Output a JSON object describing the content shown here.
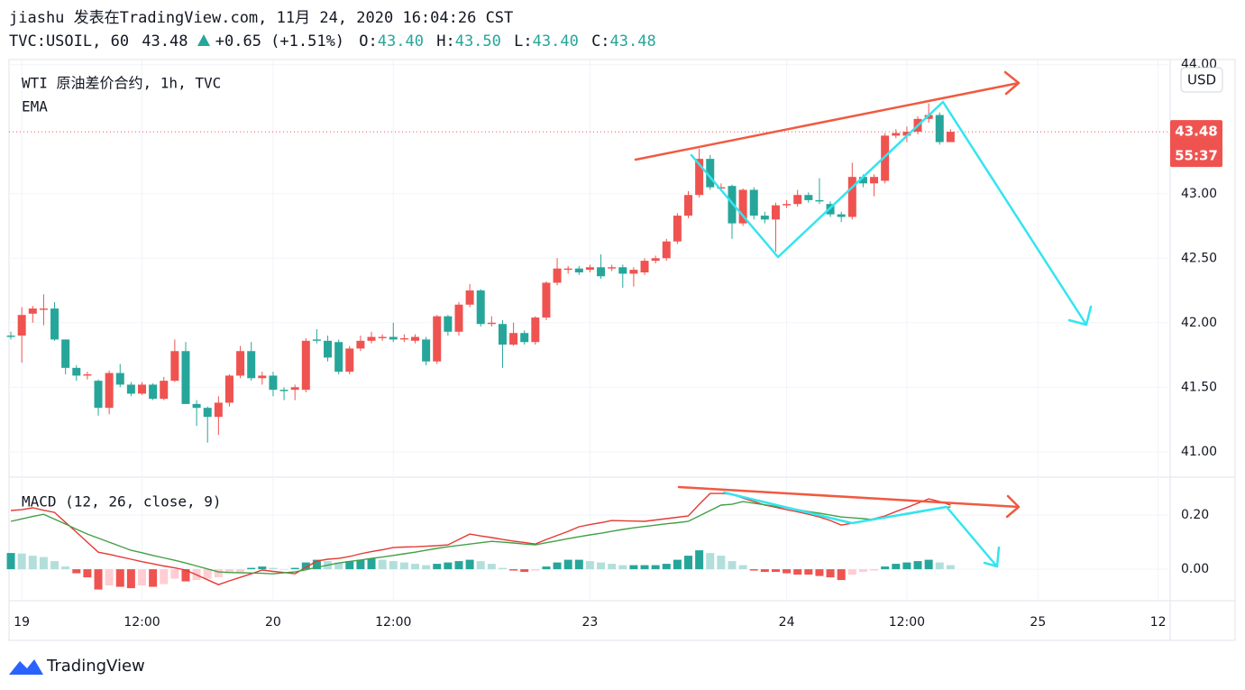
{
  "header": {
    "line1": "jiashu 发表在TradingView.com, 11月 24, 2020 16:04:26 CST",
    "symbol": "TVC:USOIL, 60",
    "price": "43.48",
    "change": "+0.65 (+1.51%)",
    "o_label": "O:",
    "o": "43.40",
    "h_label": "H:",
    "h": "43.50",
    "l_label": "L:",
    "l": "43.40",
    "c_label": "C:",
    "c": "43.48"
  },
  "footer": {
    "brand": "TradingView"
  },
  "chart_data": [
    {
      "type": "candlestick",
      "title": "WTI 原油差价合约, 1h, TVC",
      "indicator": "EMA",
      "open": [
        41.9,
        41.9,
        42.07,
        42.1,
        42.11,
        41.87,
        41.65,
        41.59,
        41.55,
        41.34,
        41.61,
        41.52,
        41.45,
        41.52,
        41.41,
        41.55,
        41.78,
        41.37,
        41.34,
        41.27,
        41.38,
        41.59,
        41.78,
        41.57,
        41.59,
        41.48,
        41.48,
        41.48,
        41.87,
        41.86,
        41.85,
        41.62,
        41.8,
        41.86,
        41.88,
        41.89,
        41.87,
        41.86,
        41.87,
        41.7,
        42.05,
        41.93,
        42.14,
        42.25,
        41.99,
        41.99,
        41.83,
        41.92,
        41.85,
        42.04,
        42.31,
        42.41,
        42.42,
        42.41,
        42.43,
        42.42,
        42.43,
        42.38,
        42.39,
        42.48,
        42.5,
        42.63,
        42.83,
        42.99,
        43.27,
        43.04,
        43.06,
        42.77,
        43.03,
        42.83,
        42.8,
        42.91,
        42.92,
        42.99,
        42.95,
        42.92,
        42.84,
        42.82,
        43.13,
        43.08,
        43.1,
        43.45,
        43.45,
        43.48,
        43.58,
        43.61,
        43.4
      ],
      "high": [
        41.93,
        42.12,
        42.13,
        42.22,
        42.16,
        41.87,
        41.67,
        41.62,
        41.56,
        41.63,
        41.68,
        41.54,
        41.54,
        41.53,
        41.58,
        41.87,
        41.85,
        41.4,
        41.35,
        41.43,
        41.6,
        41.82,
        41.85,
        41.62,
        41.62,
        41.5,
        41.52,
        41.88,
        41.95,
        41.9,
        41.87,
        41.82,
        41.9,
        41.93,
        41.91,
        42.0,
        41.91,
        41.91,
        41.89,
        42.06,
        42.06,
        42.16,
        42.3,
        42.26,
        42.05,
        42.02,
        42.0,
        41.94,
        42.05,
        42.32,
        42.5,
        42.44,
        42.44,
        42.45,
        42.53,
        42.45,
        42.45,
        42.43,
        42.5,
        42.52,
        42.65,
        42.85,
        43.02,
        43.35,
        43.3,
        43.08,
        43.07,
        43.04,
        43.05,
        42.86,
        42.93,
        42.95,
        43.03,
        43.01,
        43.12,
        42.94,
        42.86,
        43.24,
        43.15,
        43.15,
        43.47,
        43.5,
        43.52,
        43.6,
        43.7,
        43.63,
        43.5
      ],
      "low": [
        41.87,
        41.69,
        42.0,
        41.98,
        41.86,
        41.6,
        41.55,
        41.56,
        41.28,
        41.29,
        41.5,
        41.43,
        41.44,
        41.4,
        41.4,
        41.54,
        41.37,
        41.2,
        41.07,
        41.13,
        41.35,
        41.57,
        41.55,
        41.52,
        41.43,
        41.4,
        41.4,
        41.46,
        41.84,
        41.7,
        41.6,
        41.6,
        41.78,
        41.84,
        41.86,
        41.85,
        41.85,
        41.84,
        41.67,
        41.68,
        41.9,
        41.9,
        42.12,
        41.97,
        41.97,
        41.65,
        41.82,
        41.83,
        41.83,
        42.02,
        42.29,
        42.38,
        42.37,
        42.39,
        42.34,
        42.4,
        42.27,
        42.28,
        42.37,
        42.46,
        42.48,
        42.61,
        42.81,
        42.97,
        43.03,
        43.02,
        42.65,
        42.75,
        42.8,
        42.77,
        42.55,
        42.89,
        42.9,
        42.93,
        42.92,
        42.82,
        42.78,
        42.8,
        43.05,
        42.98,
        43.08,
        43.43,
        43.4,
        43.46,
        43.55,
        43.38,
        43.4
      ],
      "close": [
        41.89,
        42.06,
        42.11,
        42.11,
        41.87,
        41.65,
        41.59,
        41.6,
        41.34,
        41.61,
        41.52,
        41.45,
        41.52,
        41.41,
        41.55,
        41.78,
        41.37,
        41.34,
        41.27,
        41.38,
        41.59,
        41.78,
        41.57,
        41.59,
        41.48,
        41.47,
        41.5,
        41.86,
        41.86,
        41.73,
        41.62,
        41.8,
        41.86,
        41.89,
        41.89,
        41.87,
        41.88,
        41.89,
        41.7,
        42.05,
        41.93,
        42.14,
        42.25,
        41.99,
        42.0,
        41.83,
        41.92,
        41.85,
        42.04,
        42.31,
        42.42,
        42.42,
        42.39,
        42.43,
        42.36,
        42.43,
        42.38,
        42.41,
        42.48,
        42.5,
        42.63,
        42.83,
        42.99,
        43.27,
        43.05,
        43.05,
        42.77,
        43.03,
        42.83,
        42.8,
        42.91,
        42.92,
        42.99,
        42.95,
        42.94,
        42.84,
        42.82,
        43.13,
        43.08,
        43.13,
        43.45,
        43.47,
        43.48,
        43.58,
        43.61,
        43.4,
        43.48
      ],
      "up_color": "#ef5350",
      "down_color": "#26a69a",
      "ylim": [
        40.81,
        44.04
      ],
      "yticks": [
        {
          "value": 41,
          "label": "41.00"
        },
        {
          "value": 41.5,
          "label": "41.50"
        },
        {
          "value": 42,
          "label": "42.00"
        },
        {
          "value": 42.5,
          "label": "42.50"
        },
        {
          "value": 43,
          "label": "43.00"
        },
        {
          "value": 44,
          "label": "44.00"
        }
      ],
      "xlim": [
        -0.17,
        106.1
      ],
      "xticks": [
        {
          "value": 1,
          "label": "19"
        },
        {
          "value": 12,
          "label": "12:00"
        },
        {
          "value": 24,
          "label": "20"
        },
        {
          "value": 35,
          "label": "12:00"
        },
        {
          "value": 53,
          "label": "23"
        },
        {
          "value": 71,
          "label": "24"
        },
        {
          "value": 82,
          "label": "12:00"
        },
        {
          "value": 94,
          "label": "25"
        },
        {
          "value": 105,
          "label": "12"
        }
      ],
      "last_price": 43.48,
      "countdown": "55:37",
      "currency": "USD",
      "grid": true
    },
    {
      "type": "macd",
      "title": "MACD (12, 26, close, 9)",
      "series": [
        {
          "color": "#e53935",
          "values": [
            0.217,
            0.22,
            0.227,
            0.218,
            0.21,
            0.173,
            0.137,
            0.1,
            0.063,
            0.055,
            0.046,
            0.037,
            0.028,
            0.02,
            0.012,
            0.005,
            -0.003,
            -0.021,
            -0.039,
            -0.057,
            -0.043,
            -0.03,
            -0.017,
            -0.003,
            -0.008,
            -0.012,
            -0.017,
            0.007,
            0.03,
            0.037,
            0.04,
            0.047,
            0.057,
            0.065,
            0.072,
            0.08,
            0.082,
            0.083,
            0.085,
            0.087,
            0.09,
            0.11,
            0.13,
            0.123,
            0.117,
            0.11,
            0.104,
            0.099,
            0.093,
            0.11,
            0.125,
            0.14,
            0.157,
            0.165,
            0.172,
            0.18,
            0.179,
            0.178,
            0.177,
            0.182,
            0.187,
            0.192,
            0.197,
            0.24,
            0.28,
            0.28,
            0.277,
            0.263,
            0.25,
            0.237,
            0.229,
            0.22,
            0.212,
            0.203,
            0.193,
            0.18,
            0.163,
            0.17,
            0.178,
            0.187,
            0.197,
            0.213,
            0.228,
            0.244,
            0.26,
            0.25,
            0.237
          ]
        },
        {
          "color": "#43a047",
          "values": [
            0.177,
            0.186,
            0.195,
            0.203,
            0.185,
            0.167,
            0.148,
            0.13,
            0.115,
            0.1,
            0.085,
            0.07,
            0.061,
            0.051,
            0.042,
            0.033,
            0.023,
            0.012,
            0.001,
            -0.01,
            -0.012,
            -0.013,
            -0.014,
            -0.015,
            -0.017,
            -0.013,
            -0.01,
            -0.002,
            0.007,
            0.015,
            0.023,
            0.029,
            0.034,
            0.04,
            0.045,
            0.051,
            0.057,
            0.063,
            0.07,
            0.077,
            0.083,
            0.088,
            0.093,
            0.098,
            0.103,
            0.1,
            0.097,
            0.093,
            0.09,
            0.098,
            0.105,
            0.113,
            0.12,
            0.127,
            0.133,
            0.14,
            0.147,
            0.153,
            0.158,
            0.163,
            0.168,
            0.172,
            0.177,
            0.197,
            0.217,
            0.237,
            0.24,
            0.25,
            0.244,
            0.238,
            0.232,
            0.227,
            0.22,
            0.213,
            0.207,
            0.2,
            0.193,
            0.19,
            0.187,
            0.183,
            0.19,
            0.197,
            0.203,
            0.21,
            0.217,
            0.227,
            0.23
          ]
        }
      ],
      "histogram": {
        "values": [
          0.06,
          0.058,
          0.05,
          0.045,
          0.03,
          0.01,
          -0.015,
          -0.03,
          -0.075,
          -0.06,
          -0.065,
          -0.07,
          -0.06,
          -0.065,
          -0.055,
          -0.035,
          -0.045,
          -0.04,
          -0.035,
          -0.03,
          -0.015,
          -0.01,
          0.005,
          0.01,
          0.005,
          0.0,
          0.005,
          0.025,
          0.035,
          0.03,
          0.025,
          0.03,
          0.035,
          0.04,
          0.035,
          0.03,
          0.025,
          0.02,
          0.015,
          0.02,
          0.025,
          0.03,
          0.035,
          0.03,
          0.02,
          0.005,
          -0.005,
          -0.01,
          -0.005,
          0.01,
          0.025,
          0.035,
          0.035,
          0.03,
          0.025,
          0.02,
          0.015,
          0.015,
          0.015,
          0.015,
          0.02,
          0.035,
          0.05,
          0.07,
          0.06,
          0.05,
          0.03,
          0.015,
          -0.005,
          -0.01,
          -0.01,
          -0.015,
          -0.02,
          -0.02,
          -0.025,
          -0.03,
          -0.04,
          -0.02,
          -0.01,
          -0.005,
          0.01,
          0.02,
          0.025,
          0.03,
          0.035,
          0.025,
          0.015
        ],
        "colors": {
          "pos_rising": "#26a69a",
          "pos_falling": "#b2dfdb",
          "neg_falling": "#ef5350",
          "neg_rising": "#ffcdd2"
        }
      },
      "ylim": [
        -0.113,
        0.337
      ],
      "yticks": [
        {
          "value": 0,
          "label": "0.00"
        },
        {
          "value": 0.2,
          "label": "0.20"
        }
      ],
      "grid": true
    }
  ]
}
